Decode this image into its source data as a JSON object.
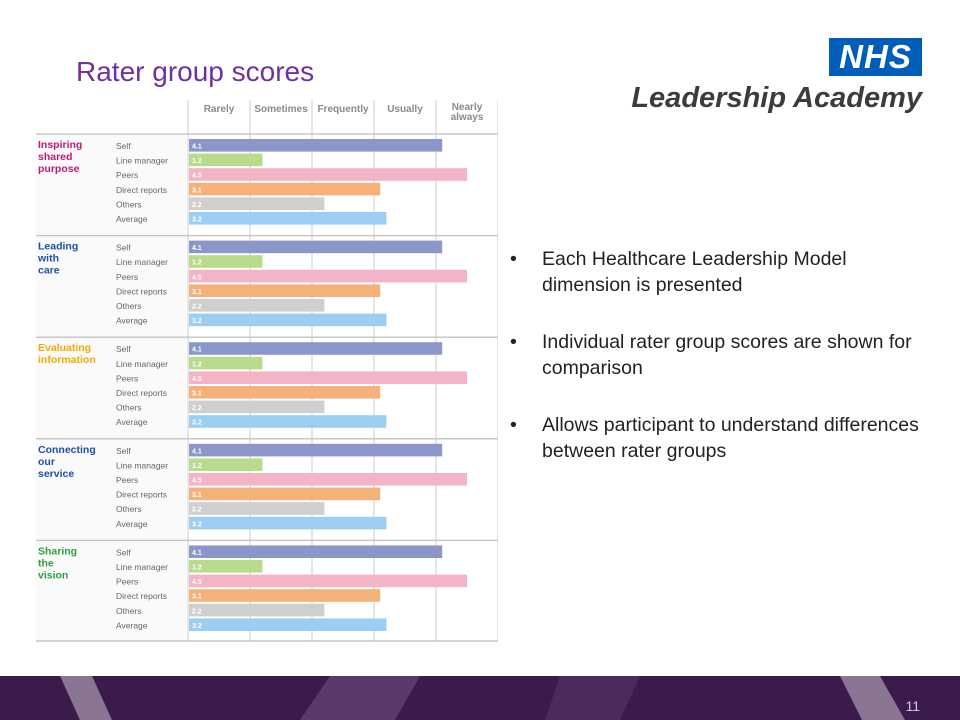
{
  "slide": {
    "title": "Rater group scores",
    "page_number": "11"
  },
  "logo": {
    "nhs": "NHS",
    "academy": "Leadership Academy",
    "nhs_color": "#005eb8"
  },
  "bullets": [
    "Each Healthcare Leadership Model dimension is presented",
    "Individual rater group scores are shown for comparison",
    "Allows participant to understand differences between rater groups"
  ],
  "colors": {
    "title": "#7030a0",
    "footer_bg": "#3b1a4c",
    "footer_stripe": "#8a7592"
  },
  "chart_data": {
    "type": "bar",
    "orientation": "horizontal",
    "scale_labels": [
      "Rarely",
      "Sometimes",
      "Frequently",
      "Usually",
      "Nearly always"
    ],
    "xlim": [
      0,
      5
    ],
    "grid": true,
    "rater_groups": [
      "Self",
      "Line manager",
      "Peers",
      "Direct reports",
      "Others",
      "Average"
    ],
    "group_colors": [
      "#8b97c9",
      "#b9db8c",
      "#f2b4c6",
      "#f4b27a",
      "#cfcfcf",
      "#9ccdf2"
    ],
    "dimensions": [
      {
        "name": "Inspiring shared purpose",
        "color": "#c0187a",
        "values": [
          4.1,
          1.2,
          4.5,
          3.1,
          2.2,
          3.2
        ]
      },
      {
        "name": "Leading with care",
        "color": "#1f4fa8",
        "values": [
          4.1,
          1.2,
          4.5,
          3.1,
          2.2,
          3.2
        ]
      },
      {
        "name": "Evaluating information",
        "color": "#f2a900",
        "values": [
          4.1,
          1.2,
          4.5,
          3.1,
          2.2,
          3.2
        ]
      },
      {
        "name": "Connecting our service",
        "color": "#1f4fa8",
        "values": [
          4.1,
          1.2,
          4.5,
          3.1,
          2.2,
          3.2
        ]
      },
      {
        "name": "Sharing the vision",
        "color": "#2e9e3c",
        "values": [
          4.1,
          1.2,
          4.5,
          3.1,
          2.2,
          3.2
        ]
      }
    ]
  }
}
